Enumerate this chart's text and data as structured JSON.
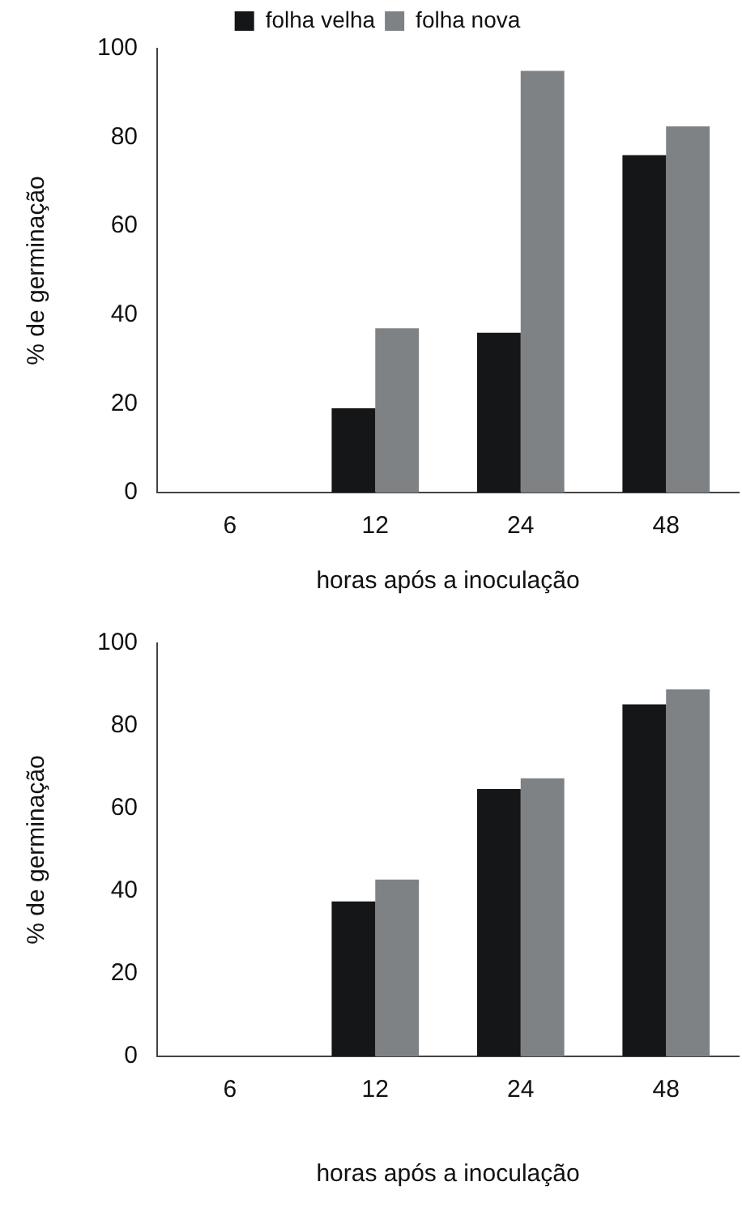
{
  "chart_data": [
    {
      "type": "bar",
      "xlabel": "horas após a inoculação",
      "ylabel": "% de germinação",
      "categories": [
        "6",
        "12",
        "24",
        "48"
      ],
      "ylim": [
        0,
        100
      ],
      "yticks": [
        0,
        20,
        40,
        60,
        80,
        100
      ],
      "grid": false,
      "legend": "top",
      "series": [
        {
          "name": "folha velha",
          "color": "#151618",
          "values": [
            0,
            19,
            36,
            76
          ]
        },
        {
          "name": "folha nova",
          "color": "#7f8285",
          "values": [
            0,
            37,
            95,
            82.5
          ]
        }
      ]
    },
    {
      "type": "bar",
      "xlabel": "horas após a inoculação",
      "ylabel": "% de germinação",
      "categories": [
        "6",
        "12",
        "24",
        "48"
      ],
      "ylim": [
        0,
        100
      ],
      "yticks": [
        0,
        20,
        40,
        60,
        80,
        100
      ],
      "grid": false,
      "legend": false,
      "series": [
        {
          "color": "#151618",
          "values": [
            0,
            37.5,
            64.7,
            85.2
          ]
        },
        {
          "color": "#7f8285",
          "values": [
            0,
            42.8,
            67.3,
            88.8
          ]
        }
      ]
    }
  ]
}
